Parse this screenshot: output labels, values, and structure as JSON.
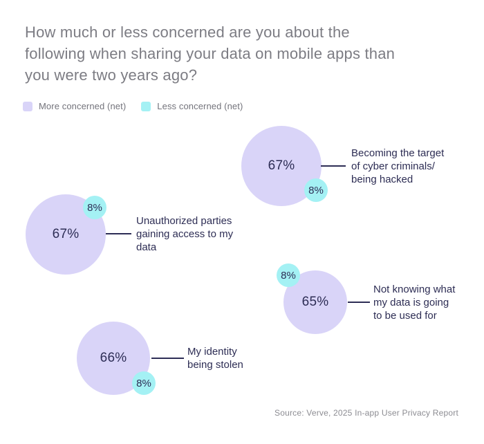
{
  "header": {
    "title_lines": [
      "How much or less concerned are you about the",
      "following when sharing your data on mobile apps than",
      "you were two years ago?"
    ]
  },
  "legend": {
    "items": [
      {
        "label": "More concerned (net)",
        "color": "#d9d4f8"
      },
      {
        "label": "Less concerned (net)",
        "color": "#a4f1f4"
      }
    ]
  },
  "bubbles": [
    {
      "id": "cyber-criminals",
      "more_value": "67%",
      "less_value": "8%",
      "label_lines": [
        "Becoming the target",
        "of cyber criminals/",
        "being hacked"
      ]
    },
    {
      "id": "unauthorized-parties",
      "more_value": "67%",
      "less_value": "8%",
      "label_lines": [
        "Unauthorized parties",
        "gaining access to my",
        "data"
      ]
    },
    {
      "id": "data-usage-unknown",
      "more_value": "65%",
      "less_value": "8%",
      "label_lines": [
        "Not knowing what",
        "my data is going",
        "to be used for"
      ]
    },
    {
      "id": "identity-stolen",
      "more_value": "66%",
      "less_value": "8%",
      "label_lines": [
        "My identity",
        "being stolen"
      ]
    }
  ],
  "footer": {
    "source": "Source: Verve, 2025 In-app User Privacy Report"
  },
  "colors": {
    "more_concerned": "#d9d4f8",
    "less_concerned": "#a4f1f4",
    "label_text": "#2d2d54",
    "title_text": "#7c7c83",
    "source_text": "#8c8c92"
  },
  "chart_data": {
    "type": "bubble",
    "title": "How much or less concerned are you about the following when sharing your data on mobile apps than you were two years ago?",
    "legend": [
      "More concerned (net)",
      "Less concerned (net)"
    ],
    "legend_position": "top-left",
    "categories": [
      "Becoming the target of cyber criminals/ being hacked",
      "Unauthorized parties gaining access to my data",
      "Not knowing what my data is going to be used for",
      "My identity being stolen"
    ],
    "series": [
      {
        "name": "More concerned (net)",
        "values": [
          67,
          67,
          65,
          66
        ]
      },
      {
        "name": "Less concerned (net)",
        "values": [
          8,
          8,
          8,
          8
        ]
      }
    ],
    "source": "Source: Verve, 2025 In-app User Privacy Report"
  }
}
